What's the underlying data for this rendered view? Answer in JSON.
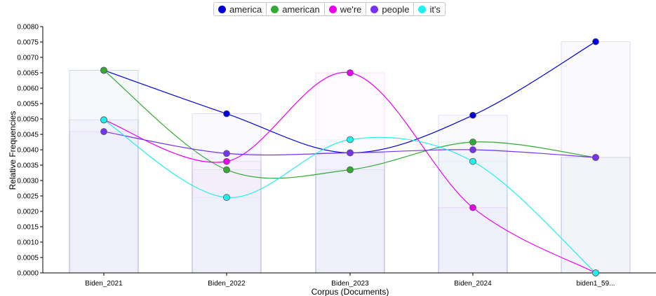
{
  "chart_data": {
    "type": "line",
    "xlabel": "Corpus (Documents)",
    "ylabel": "Relative Frequencies",
    "ylim": [
      0,
      0.008
    ],
    "yticks": [
      "0.0000",
      "0.0005",
      "0.0010",
      "0.0015",
      "0.0020",
      "0.0025",
      "0.0030",
      "0.0035",
      "0.0040",
      "0.0045",
      "0.0050",
      "0.0055",
      "0.0060",
      "0.0065",
      "0.0070",
      "0.0075",
      "0.0080"
    ],
    "categories": [
      "Biden_2021",
      "Biden_2022",
      "Biden_2023",
      "Biden_2024",
      "biden1_59..."
    ],
    "legend_position": "top-center",
    "series": [
      {
        "name": "america",
        "color": "#0000dd",
        "values": [
          0.00658,
          0.00517,
          0.0039,
          0.00512,
          0.00751
        ]
      },
      {
        "name": "american",
        "color": "#33aa33",
        "values": [
          0.00658,
          0.00335,
          0.00335,
          0.00425,
          0.00375
        ]
      },
      {
        "name": "we're",
        "color": "#ee00ee",
        "values": [
          0.00497,
          0.00362,
          0.0065,
          0.00212,
          0.0
        ]
      },
      {
        "name": "people",
        "color": "#7733ee",
        "values": [
          0.00459,
          0.00388,
          0.0039,
          0.004,
          0.00375
        ]
      },
      {
        "name": "it's",
        "color": "#22eeee",
        "values": [
          0.00497,
          0.00245,
          0.00433,
          0.00362,
          0.0
        ]
      }
    ]
  }
}
